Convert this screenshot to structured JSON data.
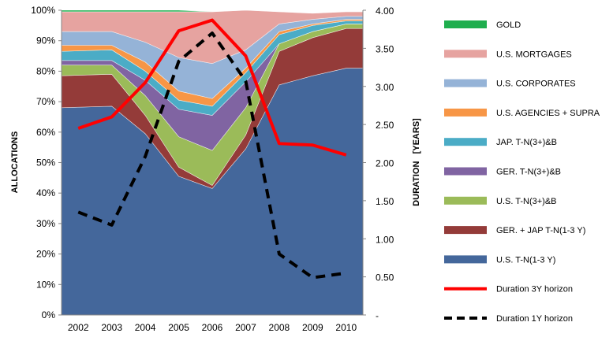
{
  "chart_data": {
    "type": "area",
    "title": "",
    "categories": [
      "2002",
      "2003",
      "2004",
      "2005",
      "2006",
      "2007",
      "2008",
      "2009",
      "2010"
    ],
    "left_axis": {
      "label": "ALLOCATIONS",
      "ylim": [
        0,
        100
      ],
      "ticks": [
        "0%",
        "10%",
        "20%",
        "30%",
        "40%",
        "50%",
        "60%",
        "70%",
        "80%",
        "90%",
        "100%"
      ]
    },
    "right_axis": {
      "label": "DURATION   [YEARS]",
      "ylim": [
        0,
        4
      ],
      "ticks": [
        "-",
        "0.50",
        "1.00",
        "1.50",
        "2.00",
        "2.50",
        "3.00",
        "3.50",
        "4.00"
      ]
    },
    "stacked_series": [
      {
        "name": "U.S. T-N(1-3 Y)",
        "color": "#44679b",
        "values": [
          68,
          68.5,
          59.5,
          45.5,
          41.5,
          54.5,
          75.5,
          78.5,
          81
        ]
      },
      {
        "name": "GER. + JAP T-N(1-3 Y)",
        "color": "#943b39",
        "values": [
          10.5,
          10.5,
          6,
          3,
          1,
          4.5,
          11,
          12.5,
          13
        ]
      },
      {
        "name": "U.S. T-N(3+)&B",
        "color": "#9bbb59",
        "values": [
          3.5,
          3,
          6.5,
          10,
          11.5,
          9,
          2.5,
          2,
          1.5
        ]
      },
      {
        "name": "GER. T-N(3+)&B",
        "color": "#8064a2",
        "values": [
          1.5,
          1.5,
          5,
          9,
          11.5,
          8.5,
          0,
          0,
          0
        ]
      },
      {
        "name": "JAP. T-N(3+)&B",
        "color": "#4bacc6",
        "values": [
          3,
          3.5,
          3,
          3,
          3,
          3,
          3,
          2,
          1
        ]
      },
      {
        "name": "U.S. AGENCIES + SUPRA",
        "color": "#f79646",
        "values": [
          2,
          1.5,
          3,
          3,
          2.5,
          1.5,
          1,
          0.5,
          0.5
        ]
      },
      {
        "name": "U.S. CORPORATES",
        "color": "#95b3d7",
        "values": [
          4.5,
          4.5,
          6.5,
          11,
          11.5,
          6,
          2.5,
          1.5,
          1
        ]
      },
      {
        "name": "U.S. MORTGAGES",
        "color": "#e6a3a0",
        "values": [
          6.5,
          6.5,
          10,
          15,
          17,
          13,
          4,
          2,
          1.5
        ]
      },
      {
        "name": "GOLD",
        "color": "#1fae4e",
        "values": [
          0.5,
          0.5,
          0.5,
          0.5,
          0,
          0,
          0,
          0,
          0
        ]
      }
    ],
    "line_series": [
      {
        "name": "Duration 3Y horizon",
        "color": "#ff0000",
        "dashed": false,
        "values": [
          2.45,
          2.6,
          3.05,
          3.73,
          3.87,
          3.4,
          2.25,
          2.23,
          2.1
        ]
      },
      {
        "name": "Duration 1Y horizon",
        "color": "#000000",
        "dashed": true,
        "values": [
          1.35,
          1.18,
          2.08,
          3.33,
          3.7,
          3.07,
          0.8,
          0.49,
          0.55
        ]
      }
    ],
    "legend_position": "right",
    "grid": false
  }
}
